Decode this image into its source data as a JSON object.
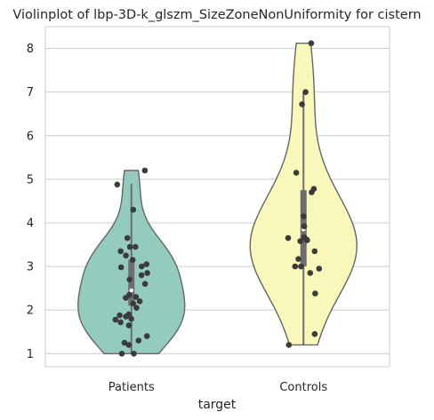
{
  "chart_data": {
    "type": "violin",
    "title": "Violinplot of lbp-3D-k_glszm_SizeZoneNonUniformity for cistern",
    "xlabel": "target",
    "ylabel": "",
    "categories": [
      "Patients",
      "Controls"
    ],
    "ylim": [
      0.7,
      8.5
    ],
    "yticks": [
      1,
      2,
      3,
      4,
      5,
      6,
      7,
      8
    ],
    "grid": "horizontal",
    "colors": {
      "Patients": "#93cbbf",
      "Controls": "#f8f8bb",
      "outline": "#666666",
      "point": "#3b3b3b",
      "box": "#6e6e6e"
    },
    "series": [
      {
        "category": "Patients",
        "summary": {
          "min": 1.0,
          "q1": 2.1,
          "median": 2.45,
          "q3": 3.15,
          "max": 4.9
        },
        "points": [
          5.2,
          4.88,
          4.3,
          3.65,
          3.45,
          3.45,
          3.35,
          3.25,
          3.15,
          3.05,
          3.0,
          2.98,
          2.85,
          2.8,
          2.7,
          2.6,
          2.35,
          2.3,
          2.28,
          2.2,
          2.15,
          2.05,
          1.9,
          1.88,
          1.85,
          1.8,
          1.78,
          1.72,
          1.65,
          1.4,
          1.3,
          1.25,
          1.2,
          1.0,
          1.0
        ]
      },
      {
        "category": "Controls",
        "summary": {
          "min": 1.2,
          "q1": 3.0,
          "median": 3.85,
          "q3": 4.75,
          "max": 7.0
        },
        "points": [
          8.12,
          7.0,
          6.72,
          5.15,
          4.78,
          4.7,
          4.15,
          3.92,
          3.67,
          3.65,
          3.62,
          3.6,
          3.58,
          3.35,
          3.17,
          3.0,
          3.0,
          2.95,
          2.85,
          2.38,
          1.45,
          1.2
        ]
      }
    ]
  }
}
